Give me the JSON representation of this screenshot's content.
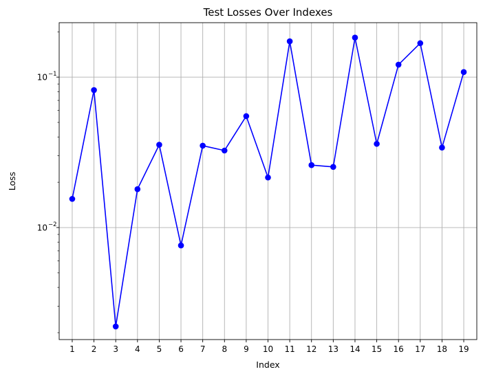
{
  "chart_data": {
    "type": "line",
    "title": "Test Losses Over Indexes",
    "xlabel": "Index",
    "ylabel": "Loss",
    "yscale": "log",
    "ylim": [
      0.0018,
      0.23
    ],
    "grid": true,
    "marker": "circle",
    "color": "#0000ff",
    "x": [
      1,
      2,
      3,
      4,
      5,
      6,
      7,
      8,
      9,
      10,
      11,
      12,
      13,
      14,
      15,
      16,
      17,
      18,
      19
    ],
    "y": [
      0.0155,
      0.082,
      0.0022,
      0.018,
      0.0355,
      0.0076,
      0.035,
      0.0325,
      0.055,
      0.0215,
      0.173,
      0.026,
      0.0253,
      0.183,
      0.036,
      0.121,
      0.168,
      0.034,
      0.108
    ],
    "xticks": [
      "1",
      "2",
      "3",
      "4",
      "5",
      "6",
      "7",
      "8",
      "9",
      "10",
      "11",
      "12",
      "13",
      "14",
      "15",
      "16",
      "17",
      "18",
      "19"
    ],
    "yticks": [
      {
        "value": 0.01,
        "base": "10",
        "exp": "−2"
      },
      {
        "value": 0.1,
        "base": "10",
        "exp": "−1"
      }
    ]
  }
}
